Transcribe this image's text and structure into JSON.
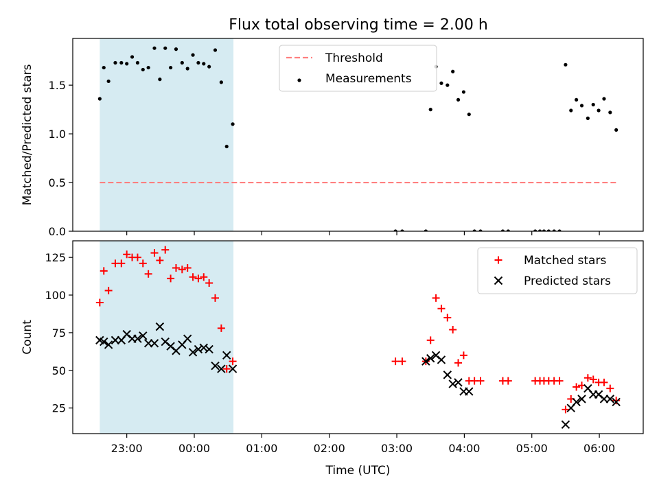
{
  "chart_data": [
    {
      "type": "scatter",
      "title": "Flux total observing time = 2.00 h",
      "xlabel": "",
      "ylabel": "Matched/Predicted stars",
      "ylim": [
        0,
        1.98
      ],
      "xlim": [
        -1.8,
        6.65
      ],
      "y_ticks": [
        "0.0",
        "0.5",
        "1.0",
        "1.5"
      ],
      "y_tick_values": [
        0,
        0.5,
        1.0,
        1.5
      ],
      "x_tick_values": [
        -1,
        0,
        1,
        2,
        3,
        4,
        5,
        6
      ],
      "x_tick_labels": [],
      "highlight_span": [
        -1.4,
        0.58
      ],
      "highlight_color": "#add8e6",
      "legend_position": "upper-center",
      "series": [
        {
          "name": "Threshold",
          "kind": "dashed-line",
          "color": "#ff7f7f",
          "x": [
            -1.4,
            6.25
          ],
          "y": [
            0.5,
            0.5
          ]
        },
        {
          "name": "Measurements",
          "kind": "dot",
          "color": "#000000",
          "x": [
            -1.4,
            -1.34,
            -1.27,
            -1.17,
            -1.08,
            -1.0,
            -0.92,
            -0.84,
            -0.76,
            -0.68,
            -0.59,
            -0.51,
            -0.43,
            -0.35,
            -0.27,
            -0.18,
            -0.1,
            -0.02,
            0.06,
            0.14,
            0.22,
            0.31,
            0.4,
            0.48,
            0.57,
            2.98,
            3.08,
            3.43,
            3.5,
            3.58,
            3.66,
            3.75,
            3.83,
            3.91,
            3.99,
            4.07,
            4.15,
            4.24,
            4.57,
            4.65,
            5.05,
            5.12,
            5.18,
            5.25,
            5.33,
            5.41,
            5.5,
            5.58,
            5.66,
            5.74,
            5.83,
            5.91,
            5.99,
            6.07,
            6.16,
            6.25
          ],
          "y": [
            1.36,
            1.68,
            1.54,
            1.73,
            1.73,
            1.72,
            1.79,
            1.73,
            1.66,
            1.68,
            1.88,
            1.56,
            1.88,
            1.68,
            1.87,
            1.73,
            1.67,
            1.81,
            1.73,
            1.72,
            1.69,
            1.86,
            1.53,
            0.87,
            1.1,
            0,
            0,
            0,
            1.25,
            1.69,
            1.52,
            1.5,
            1.64,
            1.35,
            1.43,
            1.2,
            0,
            0,
            0,
            0,
            0,
            0,
            0,
            0,
            0,
            0,
            1.71,
            1.24,
            1.35,
            1.29,
            1.16,
            1.3,
            1.24,
            1.36,
            1.22,
            1.04
          ]
        }
      ]
    },
    {
      "type": "scatter",
      "title": "",
      "xlabel": "Time (UTC)",
      "ylabel": "Count",
      "ylim": [
        8,
        136
      ],
      "xlim": [
        -1.8,
        6.65
      ],
      "y_ticks": [
        "25",
        "50",
        "75",
        "100",
        "125"
      ],
      "y_tick_values": [
        25,
        50,
        75,
        100,
        125
      ],
      "x_tick_values": [
        -1,
        0,
        1,
        2,
        3,
        4,
        5,
        6
      ],
      "x_tick_labels": [
        "23:00",
        "00:00",
        "01:00",
        "02:00",
        "03:00",
        "04:00",
        "05:00",
        "06:00"
      ],
      "highlight_span": [
        -1.4,
        0.58
      ],
      "highlight_color": "#add8e6",
      "legend_position": "upper-right",
      "series": [
        {
          "name": "Matched stars",
          "kind": "plus",
          "color": "#ff0000",
          "x": [
            -1.4,
            -1.34,
            -1.27,
            -1.17,
            -1.08,
            -1.0,
            -0.92,
            -0.84,
            -0.76,
            -0.68,
            -0.59,
            -0.51,
            -0.43,
            -0.35,
            -0.27,
            -0.18,
            -0.1,
            -0.02,
            0.06,
            0.14,
            0.22,
            0.31,
            0.4,
            0.48,
            0.57,
            2.98,
            3.08,
            3.43,
            3.5,
            3.58,
            3.66,
            3.75,
            3.83,
            3.91,
            3.99,
            4.07,
            4.15,
            4.24,
            4.57,
            4.65,
            5.05,
            5.12,
            5.18,
            5.25,
            5.33,
            5.41,
            5.5,
            5.58,
            5.66,
            5.74,
            5.83,
            5.91,
            5.99,
            6.07,
            6.16,
            6.25
          ],
          "y": [
            95,
            116,
            103,
            121,
            121,
            127,
            125,
            125,
            121,
            114,
            128,
            123,
            130,
            111,
            118,
            117,
            118,
            112,
            111,
            112,
            108,
            98,
            78,
            51,
            56,
            56,
            56,
            56,
            70,
            98,
            91,
            85,
            77,
            55,
            60,
            43,
            43,
            43,
            43,
            43,
            43,
            43,
            43,
            43,
            43,
            43,
            24,
            31,
            39,
            40,
            45,
            44,
            42,
            42,
            38,
            30
          ]
        },
        {
          "name": "Predicted stars",
          "kind": "x",
          "color": "#000000",
          "x": [
            -1.4,
            -1.34,
            -1.27,
            -1.17,
            -1.08,
            -1.0,
            -0.92,
            -0.84,
            -0.76,
            -0.68,
            -0.59,
            -0.51,
            -0.43,
            -0.35,
            -0.27,
            -0.18,
            -0.1,
            -0.02,
            0.06,
            0.14,
            0.22,
            0.31,
            0.4,
            0.48,
            0.57,
            3.43,
            3.5,
            3.58,
            3.66,
            3.75,
            3.83,
            3.91,
            3.99,
            4.07,
            5.5,
            5.58,
            5.66,
            5.74,
            5.83,
            5.91,
            5.99,
            6.07,
            6.16,
            6.25
          ],
          "y": [
            70,
            69,
            67,
            70,
            70,
            74,
            71,
            71,
            73,
            68,
            68,
            79,
            69,
            66,
            63,
            67,
            71,
            62,
            64,
            65,
            64,
            53,
            51,
            60,
            51,
            56,
            58,
            60,
            57,
            47,
            41,
            42,
            36,
            36,
            14,
            25,
            29,
            31,
            38,
            34,
            34,
            31,
            31,
            29
          ]
        }
      ]
    }
  ]
}
